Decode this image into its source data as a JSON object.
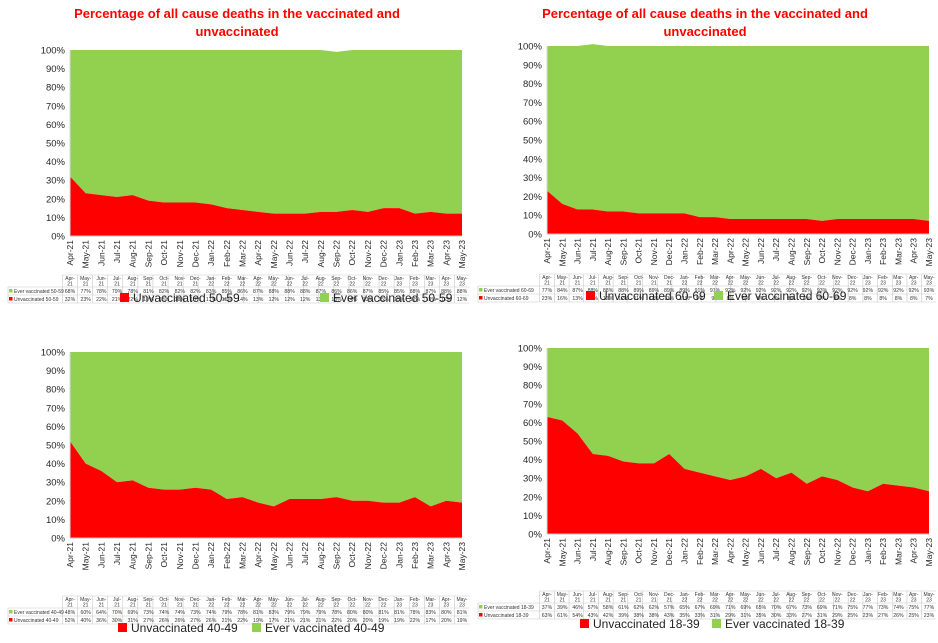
{
  "chart_data": [
    {
      "type": "area",
      "stacked": true,
      "percent": true,
      "title": "Percentage of all cause deaths in the vaccinated and unvaccinated",
      "title_lines": [
        "Percentage of all cause deaths in the vaccinated and",
        "unvaccinated"
      ],
      "categories": [
        "Apr-21",
        "May-21",
        "Jun-21",
        "Jul-21",
        "Aug-21",
        "Sep-21",
        "Oct-21",
        "Nov-21",
        "Dec-21",
        "Jan-22",
        "Feb-22",
        "Mar-22",
        "Apr-22",
        "May-22",
        "Jun-22",
        "Jul-22",
        "Aug-22",
        "Sep-22",
        "Oct-22",
        "Nov-22",
        "Dec-22",
        "Jan-23",
        "Feb-23",
        "Mar-23",
        "Apr-23",
        "May-23"
      ],
      "table_categories": [
        [
          "Apr-",
          "21"
        ],
        [
          "May-",
          "21"
        ],
        [
          "Jun-",
          "21"
        ],
        [
          "Jul-",
          "21"
        ],
        [
          "Aug-",
          "21"
        ],
        [
          "Sep-",
          "21"
        ],
        [
          "Oct-",
          "21"
        ],
        [
          "Nov-",
          "21"
        ],
        [
          "Dec-",
          "21"
        ],
        [
          "Jan-",
          "22"
        ],
        [
          "Feb-",
          "22"
        ],
        [
          "Mar-",
          "22"
        ],
        [
          "Apr-",
          "22"
        ],
        [
          "May-",
          "22"
        ],
        [
          "Jun-",
          "22"
        ],
        [
          "Jul-",
          "22"
        ],
        [
          "Aug-",
          "22"
        ],
        [
          "Sep-",
          "22"
        ],
        [
          "Oct-",
          "22"
        ],
        [
          "Nov-",
          "22"
        ],
        [
          "Dec-",
          "22"
        ],
        [
          "Jan-",
          "23"
        ],
        [
          "Feb-",
          "23"
        ],
        [
          "Mar-",
          "23"
        ],
        [
          "Apr-",
          "23"
        ],
        [
          "May-",
          "23"
        ]
      ],
      "ytick_labels": [
        "0%",
        "10%",
        "20%",
        "30%",
        "40%",
        "50%",
        "60%",
        "70%",
        "80%",
        "90%",
        "100%"
      ],
      "ylim": [
        0,
        100
      ],
      "legend_order": [
        0,
        1
      ],
      "series": [
        {
          "name": "Unvaccinated 50-59",
          "table_name": "Unvaccinated 50-59",
          "color": "#ff0000",
          "values": [
            32,
            23,
            22,
            21,
            22,
            19,
            18,
            18,
            18,
            17,
            15,
            14,
            13,
            12,
            12,
            12,
            13,
            13,
            14,
            13,
            15,
            15,
            12,
            13,
            12,
            12
          ]
        },
        {
          "name": "Ever vaccinated 50-59",
          "table_name": "Ever vaccinated 50-59",
          "color": "#92d050",
          "values": [
            68,
            77,
            78,
            79,
            78,
            81,
            82,
            82,
            82,
            83,
            85,
            86,
            87,
            88,
            88,
            88,
            87,
            86,
            86,
            87,
            85,
            85,
            88,
            87,
            88,
            88
          ]
        }
      ]
    },
    {
      "type": "area",
      "stacked": true,
      "percent": true,
      "title": "Percentage of all cause deaths in the vaccinated and unvaccinated",
      "title_lines": [
        "Percentage of all cause deaths in the vaccinated and",
        "unvaccinated"
      ],
      "categories": [
        "Apr-21",
        "May-21",
        "Jun-21",
        "Jul-21",
        "Aug-21",
        "Sep-21",
        "Oct-21",
        "Nov-21",
        "Dec-21",
        "Jan-22",
        "Feb-22",
        "Mar-22",
        "Apr-22",
        "May-22",
        "Jun-22",
        "Jul-22",
        "Aug-22",
        "Sep-22",
        "Oct-22",
        "Nov-22",
        "Dec-22",
        "Jan-23",
        "Feb-23",
        "Mar-23",
        "Apr-23",
        "May-23"
      ],
      "table_categories": [
        [
          "Apr-",
          "21"
        ],
        [
          "May-",
          "21"
        ],
        [
          "Jun-",
          "21"
        ],
        [
          "Jul-",
          "21"
        ],
        [
          "Aug-",
          "21"
        ],
        [
          "Sep-",
          "21"
        ],
        [
          "Oct-",
          "21"
        ],
        [
          "Nov-",
          "21"
        ],
        [
          "Dec-",
          "21"
        ],
        [
          "Jan-",
          "22"
        ],
        [
          "Feb-",
          "22"
        ],
        [
          "Mar-",
          "22"
        ],
        [
          "Apr-",
          "22"
        ],
        [
          "May-",
          "22"
        ],
        [
          "Jun-",
          "22"
        ],
        [
          "Jul-",
          "22"
        ],
        [
          "Aug-",
          "22"
        ],
        [
          "Sep-",
          "22"
        ],
        [
          "Oct-",
          "22"
        ],
        [
          "Nov-",
          "22"
        ],
        [
          "Dec-",
          "22"
        ],
        [
          "Jan-",
          "23"
        ],
        [
          "Feb-",
          "23"
        ],
        [
          "Mar-",
          "23"
        ],
        [
          "Apr-",
          "23"
        ],
        [
          "May-",
          "23"
        ]
      ],
      "ytick_labels": [
        "0%",
        "10%",
        "20%",
        "30%",
        "40%",
        "50%",
        "60%",
        "70%",
        "80%",
        "90%",
        "100%"
      ],
      "ylim": [
        0,
        100
      ],
      "legend_order": [
        0,
        1
      ],
      "series": [
        {
          "name": "Unvaccinated 60-69",
          "table_name": "Unvaccinated 60-69",
          "color": "#ff0000",
          "values": [
            23,
            16,
            13,
            13,
            12,
            12,
            11,
            11,
            11,
            11,
            9,
            9,
            8,
            8,
            8,
            8,
            8,
            8,
            7,
            8,
            8,
            8,
            8,
            8,
            8,
            7
          ]
        },
        {
          "name": "Ever vaccinated 60-69",
          "table_name": "Ever vaccinated 60-69",
          "color": "#92d050",
          "values": [
            77,
            84,
            87,
            88,
            88,
            88,
            89,
            89,
            89,
            89,
            91,
            91,
            92,
            92,
            92,
            92,
            92,
            92,
            93,
            92,
            92,
            92,
            92,
            92,
            92,
            93
          ]
        }
      ]
    },
    {
      "type": "area",
      "stacked": true,
      "percent": true,
      "title": "",
      "title_lines": [],
      "categories": [
        "Apr-21",
        "May-21",
        "Jun-21",
        "Jul-21",
        "Aug-21",
        "Sep-21",
        "Oct-21",
        "Nov-21",
        "Dec-21",
        "Jan-22",
        "Feb-22",
        "Mar-22",
        "Apr-22",
        "May-22",
        "Jun-22",
        "Jul-22",
        "Aug-22",
        "Sep-22",
        "Oct-22",
        "Nov-22",
        "Dec-22",
        "Jan-23",
        "Feb-23",
        "Mar-23",
        "Apr-23",
        "May-23"
      ],
      "table_categories": [
        [
          "Apr-",
          "21"
        ],
        [
          "May-",
          "21"
        ],
        [
          "Jun-",
          "21"
        ],
        [
          "Jul-",
          "21"
        ],
        [
          "Aug-",
          "21"
        ],
        [
          "Sep-",
          "21"
        ],
        [
          "Oct-",
          "21"
        ],
        [
          "Nov-",
          "21"
        ],
        [
          "Dec-",
          "21"
        ],
        [
          "Jan-",
          "22"
        ],
        [
          "Feb-",
          "22"
        ],
        [
          "Mar-",
          "22"
        ],
        [
          "Apr-",
          "22"
        ],
        [
          "May-",
          "22"
        ],
        [
          "Jun-",
          "22"
        ],
        [
          "Jul-",
          "22"
        ],
        [
          "Aug-",
          "22"
        ],
        [
          "Sep-",
          "22"
        ],
        [
          "Oct-",
          "22"
        ],
        [
          "Nov-",
          "22"
        ],
        [
          "Dec-",
          "22"
        ],
        [
          "Jan-",
          "23"
        ],
        [
          "Feb-",
          "23"
        ],
        [
          "Mar-",
          "23"
        ],
        [
          "Apr-",
          "23"
        ],
        [
          "May-",
          "23"
        ]
      ],
      "ytick_labels": [
        "0%",
        "10%",
        "20%",
        "30%",
        "40%",
        "50%",
        "60%",
        "70%",
        "80%",
        "90%",
        "100%"
      ],
      "ylim": [
        0,
        100
      ],
      "legend_order": [
        0,
        1
      ],
      "series": [
        {
          "name": "Unvaccinated 40-49",
          "table_name": "Unvaccinated 40-49",
          "color": "#ff0000",
          "values": [
            52,
            40,
            36,
            30,
            31,
            27,
            26,
            26,
            27,
            26,
            21,
            22,
            19,
            17,
            21,
            21,
            21,
            22,
            20,
            20,
            19,
            19,
            22,
            17,
            20,
            19
          ]
        },
        {
          "name": "Ever vaccinated 40-49",
          "table_name": "Ever vaccinated 40-49",
          "color": "#92d050",
          "values": [
            48,
            60,
            64,
            70,
            69,
            73,
            74,
            74,
            73,
            74,
            79,
            78,
            81,
            83,
            79,
            79,
            79,
            78,
            80,
            80,
            81,
            81,
            78,
            83,
            80,
            81
          ]
        }
      ]
    },
    {
      "type": "area",
      "stacked": true,
      "percent": true,
      "title": "",
      "title_lines": [],
      "categories": [
        "Apr-21",
        "May-21",
        "Jun-21",
        "Jul-21",
        "Aug-21",
        "Sep-21",
        "Oct-21",
        "Nov-21",
        "Dec-21",
        "Jan-22",
        "Feb-22",
        "Mar-22",
        "Apr-22",
        "May-22",
        "Jun-22",
        "Jul-22",
        "Aug-22",
        "Sep-22",
        "Oct-22",
        "Nov-22",
        "Dec-22",
        "Jan-23",
        "Feb-23",
        "Mar-23",
        "Apr-23",
        "May-23"
      ],
      "table_categories": [
        [
          "Apr-",
          "21"
        ],
        [
          "May-",
          "21"
        ],
        [
          "Jun-",
          "21"
        ],
        [
          "Jul-",
          "21"
        ],
        [
          "Aug-",
          "21"
        ],
        [
          "Sep-",
          "21"
        ],
        [
          "Oct-",
          "21"
        ],
        [
          "Nov-",
          "21"
        ],
        [
          "Dec-",
          "21"
        ],
        [
          "Jan-",
          "22"
        ],
        [
          "Feb-",
          "22"
        ],
        [
          "Mar-",
          "22"
        ],
        [
          "Apr-",
          "22"
        ],
        [
          "May-",
          "22"
        ],
        [
          "Jun-",
          "22"
        ],
        [
          "Jul-",
          "22"
        ],
        [
          "Aug-",
          "22"
        ],
        [
          "Sep-",
          "22"
        ],
        [
          "Oct-",
          "22"
        ],
        [
          "Nov-",
          "22"
        ],
        [
          "Dec-",
          "22"
        ],
        [
          "Jan-",
          "23"
        ],
        [
          "Feb-",
          "23"
        ],
        [
          "Mar-",
          "23"
        ],
        [
          "Apr-",
          "23"
        ],
        [
          "May-",
          "23"
        ]
      ],
      "ytick_labels": [
        "0%",
        "10%",
        "20%",
        "30%",
        "40%",
        "50%",
        "60%",
        "70%",
        "80%",
        "90%",
        "100%"
      ],
      "ylim": [
        0,
        100
      ],
      "legend_order": [
        0,
        1
      ],
      "series": [
        {
          "name": "Unvaccinated 18-39",
          "table_name": "Unvaccinated 18-39",
          "color": "#ff0000",
          "values": [
            63,
            61,
            54,
            43,
            42,
            39,
            38,
            38,
            43,
            35,
            33,
            31,
            29,
            31,
            35,
            30,
            33,
            27,
            31,
            29,
            25,
            23,
            27,
            26,
            25,
            23
          ]
        },
        {
          "name": "Ever vaccinated 18-39",
          "table_name": "Ever vaccinated 18-39",
          "color": "#92d050",
          "values": [
            37,
            39,
            46,
            57,
            58,
            61,
            62,
            62,
            57,
            65,
            67,
            69,
            71,
            69,
            65,
            70,
            67,
            73,
            69,
            71,
            75,
            77,
            73,
            74,
            75,
            77
          ]
        }
      ]
    }
  ]
}
